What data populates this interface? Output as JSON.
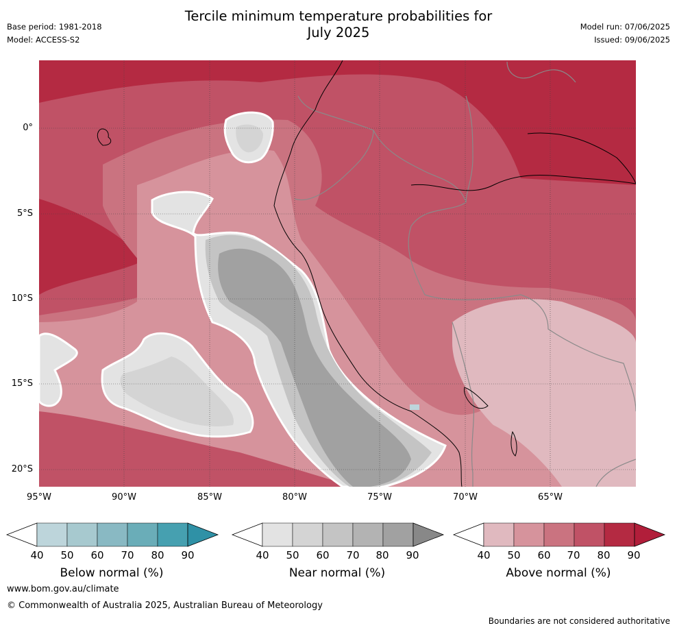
{
  "header": {
    "title_line1": "Tercile minimum temperature probabilities for",
    "title_line2": "July 2025",
    "base_period": "Base period: 1981-2018",
    "model": "Model: ACCESS-S2",
    "model_run": "Model run: 07/06/2025",
    "issued": "Issued: 09/06/2025"
  },
  "map": {
    "lat_labels": [
      "0°",
      "5°S",
      "10°S",
      "15°S",
      "20°S"
    ],
    "lon_labels": [
      "95°W",
      "90°W",
      "85°W",
      "80°W",
      "75°W",
      "70°W",
      "65°W"
    ],
    "colors": {
      "above": [
        "#e0b9bf",
        "#d6939c",
        "#ca7380",
        "#c05266",
        "#b42a42",
        "#b11e3a"
      ],
      "near": [
        "#e3e3e3",
        "#d4d4d4",
        "#c4c4c4",
        "#b3b3b3",
        "#a1a1a1",
        "#888888"
      ],
      "below": [
        "#bdd5db",
        "#a7c9cf",
        "#89b9c3",
        "#6aadb8",
        "#46a0b0",
        "#2f91a6"
      ],
      "coast": "#000000",
      "border": "#8a8a8a",
      "near_outline": "#ffffff"
    }
  },
  "colorbars": [
    {
      "id": "below",
      "label": "Below normal (%)",
      "ticks": [
        "40",
        "50",
        "60",
        "70",
        "80",
        "90"
      ]
    },
    {
      "id": "near",
      "label": "Near normal (%)",
      "ticks": [
        "40",
        "50",
        "60",
        "70",
        "80",
        "90"
      ]
    },
    {
      "id": "above",
      "label": "Above normal (%)",
      "ticks": [
        "40",
        "50",
        "60",
        "70",
        "80",
        "90"
      ]
    }
  ],
  "footer": {
    "website": "www.bom.gov.au/climate",
    "copyright": "© Commonwealth of Australia 2025, Australian Bureau of Meteorology",
    "disclaimer": "Boundaries are not considered authoritative"
  }
}
